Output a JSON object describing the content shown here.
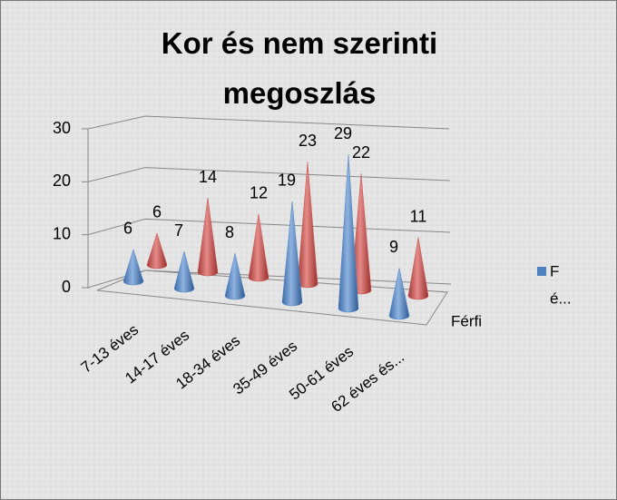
{
  "chart_data": {
    "type": "cone3d",
    "title": "Kor és nem szerinti megoszlás",
    "categories": [
      "7-13 éves",
      "14-17 éves",
      "18-34 éves",
      "35-49 éves",
      "50-61 éves",
      "62 éves és..."
    ],
    "series": [
      {
        "name": "Férfi",
        "color": "#4f81bd",
        "values": [
          6,
          7,
          8,
          19,
          29,
          9
        ]
      },
      {
        "color": "#c0504d",
        "values": [
          6,
          14,
          12,
          23,
          22,
          11
        ]
      }
    ],
    "legend_label": [
      "F",
      "é..."
    ],
    "ylim": [
      0,
      30
    ],
    "yticks": [
      0,
      10,
      20,
      30
    ],
    "grid": true
  }
}
